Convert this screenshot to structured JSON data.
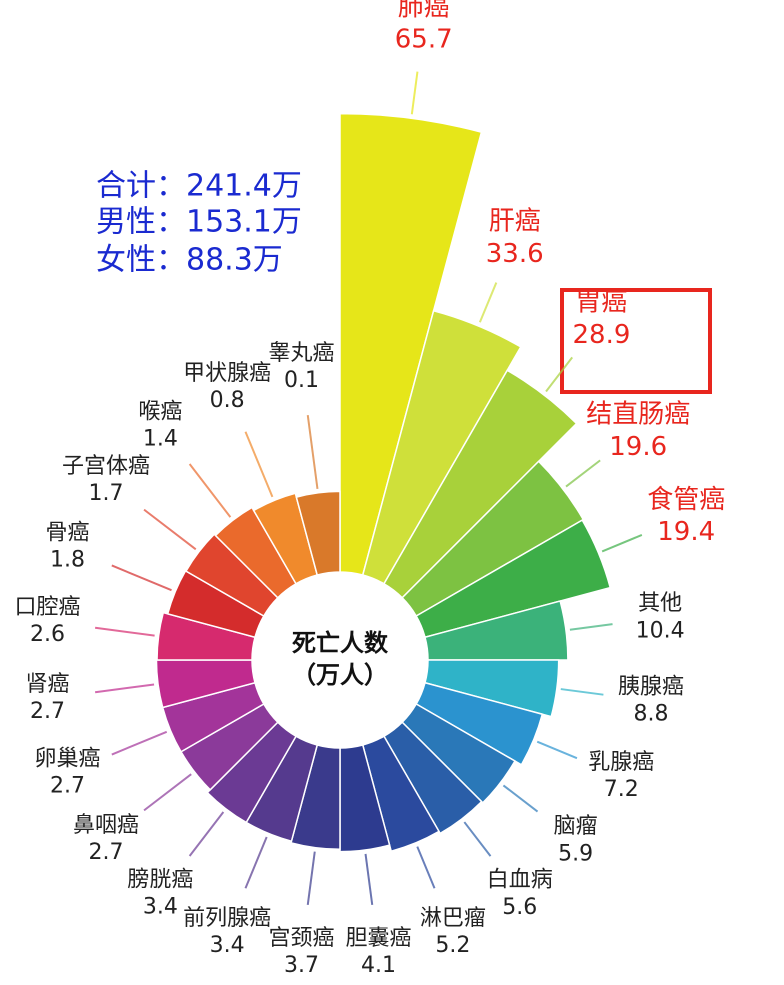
{
  "chart_data": {
    "type": "radial-bar",
    "annotations": [
      "合计：241.4万",
      "男性：153.1万",
      "女性：88.3万"
    ],
    "center_label": [
      "死亡人数",
      "（万人）"
    ],
    "categories": [
      "肺癌",
      "肝癌",
      "胃癌",
      "结直肠癌",
      "食管癌",
      "其他",
      "胰腺癌",
      "乳腺癌",
      "脑瘤",
      "白血病",
      "淋巴瘤",
      "胆囊癌",
      "宫颈癌",
      "前列腺癌",
      "膀胱癌",
      "鼻咽癌",
      "卵巢癌",
      "肾癌",
      "口腔癌",
      "骨癌",
      "子宫体癌",
      "喉癌",
      "甲状腺癌",
      "睾丸癌"
    ],
    "values": [
      65.7,
      33.6,
      28.9,
      19.6,
      19.4,
      10.4,
      8.8,
      7.2,
      5.9,
      5.6,
      5.2,
      4.1,
      3.7,
      3.4,
      3.4,
      2.7,
      2.7,
      2.7,
      2.6,
      1.8,
      1.7,
      1.4,
      0.8,
      0.1
    ],
    "colors": [
      "#e6e619",
      "#cfe03a",
      "#a8d13a",
      "#7dc242",
      "#3dae48",
      "#3bb27a",
      "#2fb3c8",
      "#2b93cf",
      "#2a78b8",
      "#2a5ea8",
      "#2b4a9e",
      "#2d3b8f",
      "#3a3a8c",
      "#553a8e",
      "#6b3a94",
      "#8b3a9a",
      "#a3349a",
      "#c02a8e",
      "#d62a6e",
      "#d42c2c",
      "#e0452e",
      "#ea6a2c",
      "#f08a2c",
      "#d9792a"
    ],
    "label_colors": [
      "#e8261e",
      "#e8261e",
      "#e8261e",
      "#e8261e",
      "#e8261e",
      "#222222",
      "#222222",
      "#222222",
      "#222222",
      "#222222",
      "#222222",
      "#222222",
      "#222222",
      "#222222",
      "#222222",
      "#222222",
      "#222222",
      "#222222",
      "#222222",
      "#222222",
      "#222222",
      "#222222",
      "#222222",
      "#222222"
    ]
  }
}
